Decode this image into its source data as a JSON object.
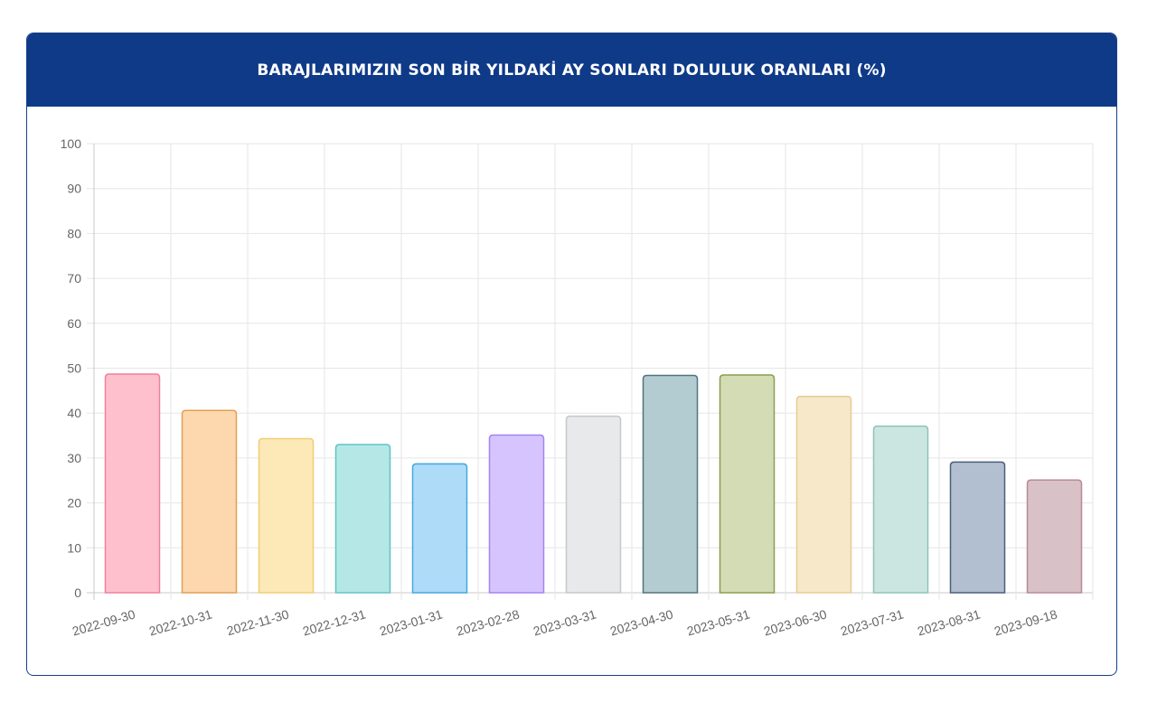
{
  "header": {
    "title": "BARAJLARIMIZIN SON BİR YILDAKİ AY SONLARI DOLULUK ORANLARI (%)"
  },
  "chart_data": {
    "type": "bar",
    "title": "BARAJLARIMIZIN SON BİR YILDAKİ AY SONLARI DOLULUK ORANLARI (%)",
    "xlabel": "",
    "ylabel": "",
    "ylim": [
      0,
      100
    ],
    "yticks": [
      0,
      10,
      20,
      30,
      40,
      50,
      60,
      70,
      80,
      90,
      100
    ],
    "grid": true,
    "categories": [
      "2022-09-30",
      "2022-10-31",
      "2022-11-30",
      "2022-12-31",
      "2023-01-31",
      "2023-02-28",
      "2023-03-31",
      "2023-04-30",
      "2023-05-31",
      "2023-06-30",
      "2023-07-31",
      "2023-08-31",
      "2023-09-18"
    ],
    "values": [
      48.7,
      40.6,
      34.3,
      33.0,
      28.7,
      35.1,
      39.3,
      48.4,
      48.5,
      43.7,
      37.1,
      29.1,
      25.1
    ],
    "colors": [
      {
        "fill": "#ffc0cd",
        "stroke": "#f0809a"
      },
      {
        "fill": "#fdd7ad",
        "stroke": "#e0a054"
      },
      {
        "fill": "#fde9b8",
        "stroke": "#f1ce70"
      },
      {
        "fill": "#b5e7e7",
        "stroke": "#62c3c3"
      },
      {
        "fill": "#addbf8",
        "stroke": "#46a7e0"
      },
      {
        "fill": "#d6c4fe",
        "stroke": "#a582f3"
      },
      {
        "fill": "#e8e9eb",
        "stroke": "#c6c8cc"
      },
      {
        "fill": "#b3ccd1",
        "stroke": "#53747c"
      },
      {
        "fill": "#d4dcb5",
        "stroke": "#8a9d50"
      },
      {
        "fill": "#f6e8c9",
        "stroke": "#e7cd92"
      },
      {
        "fill": "#cbe6e0",
        "stroke": "#8cc5b8"
      },
      {
        "fill": "#b2bfd0",
        "stroke": "#4b5e7c"
      },
      {
        "fill": "#d8c1c7",
        "stroke": "#b88a96"
      }
    ]
  }
}
